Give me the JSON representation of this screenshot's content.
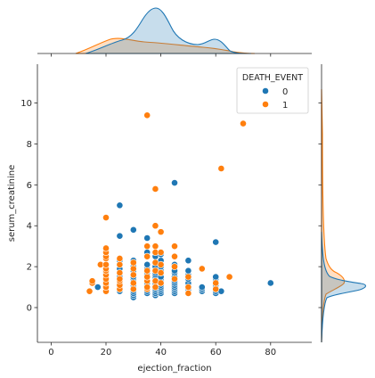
{
  "chart_data": {
    "type": "scatter",
    "title": "",
    "xlabel": "ejection_fraction",
    "ylabel": "serum_creatinine",
    "xlim": [
      -5,
      95
    ],
    "ylim": [
      -1.7,
      11.9
    ],
    "xticks": [
      0,
      20,
      40,
      60,
      80
    ],
    "yticks": [
      0,
      2,
      4,
      6,
      8,
      10
    ],
    "grid": false,
    "legend": {
      "title": "DEATH_EVENT",
      "placement": "top-right",
      "entries": [
        {
          "label": "0",
          "color": "#1f77b4"
        },
        {
          "label": "1",
          "color": "#ff7f0e"
        }
      ]
    },
    "series": [
      {
        "name": "0",
        "color": "#1f77b4",
        "points": [
          [
            17,
            1.0
          ],
          [
            20,
            0.8
          ],
          [
            20,
            1.0
          ],
          [
            20,
            1.1
          ],
          [
            20,
            1.3
          ],
          [
            20,
            1.6
          ],
          [
            20,
            1.7
          ],
          [
            25,
            0.8
          ],
          [
            25,
            0.9
          ],
          [
            25,
            1.0
          ],
          [
            25,
            1.1
          ],
          [
            25,
            1.2
          ],
          [
            25,
            1.3
          ],
          [
            25,
            1.5
          ],
          [
            25,
            1.9
          ],
          [
            25,
            2.3
          ],
          [
            25,
            3.5
          ],
          [
            25,
            5.0
          ],
          [
            30,
            0.5
          ],
          [
            30,
            0.6
          ],
          [
            30,
            0.7
          ],
          [
            30,
            0.8
          ],
          [
            30,
            0.9
          ],
          [
            30,
            1.0
          ],
          [
            30,
            1.1
          ],
          [
            30,
            1.2
          ],
          [
            30,
            1.3
          ],
          [
            30,
            1.4
          ],
          [
            30,
            1.5
          ],
          [
            30,
            1.6
          ],
          [
            30,
            1.7
          ],
          [
            30,
            1.8
          ],
          [
            30,
            2.0
          ],
          [
            30,
            2.3
          ],
          [
            30,
            3.8
          ],
          [
            35,
            0.7
          ],
          [
            35,
            0.8
          ],
          [
            35,
            0.9
          ],
          [
            35,
            1.0
          ],
          [
            35,
            1.1
          ],
          [
            35,
            1.2
          ],
          [
            35,
            1.3
          ],
          [
            35,
            1.4
          ],
          [
            35,
            1.5
          ],
          [
            35,
            1.6
          ],
          [
            35,
            1.7
          ],
          [
            35,
            1.8
          ],
          [
            35,
            1.9
          ],
          [
            35,
            2.1
          ],
          [
            35,
            2.7
          ],
          [
            35,
            3.4
          ],
          [
            38,
            0.6
          ],
          [
            38,
            0.7
          ],
          [
            38,
            0.8
          ],
          [
            38,
            0.9
          ],
          [
            38,
            1.0
          ],
          [
            38,
            1.1
          ],
          [
            38,
            1.2
          ],
          [
            38,
            1.3
          ],
          [
            38,
            1.4
          ],
          [
            38,
            1.5
          ],
          [
            38,
            1.6
          ],
          [
            38,
            1.7
          ],
          [
            38,
            1.8
          ],
          [
            38,
            2.0
          ],
          [
            38,
            2.2
          ],
          [
            38,
            2.5
          ],
          [
            40,
            0.7
          ],
          [
            40,
            0.8
          ],
          [
            40,
            0.9
          ],
          [
            40,
            1.0
          ],
          [
            40,
            1.1
          ],
          [
            40,
            1.2
          ],
          [
            40,
            1.3
          ],
          [
            40,
            1.4
          ],
          [
            40,
            1.5
          ],
          [
            40,
            1.7
          ],
          [
            40,
            1.8
          ],
          [
            40,
            2.0
          ],
          [
            40,
            2.3
          ],
          [
            40,
            2.6
          ],
          [
            45,
            0.7
          ],
          [
            45,
            0.8
          ],
          [
            45,
            0.9
          ],
          [
            45,
            1.0
          ],
          [
            45,
            1.1
          ],
          [
            45,
            1.2
          ],
          [
            45,
            1.3
          ],
          [
            45,
            1.4
          ],
          [
            45,
            1.5
          ],
          [
            45,
            1.7
          ],
          [
            45,
            1.8
          ],
          [
            45,
            2.1
          ],
          [
            45,
            6.1
          ],
          [
            50,
            0.7
          ],
          [
            50,
            0.8
          ],
          [
            50,
            0.9
          ],
          [
            50,
            1.0
          ],
          [
            50,
            1.1
          ],
          [
            50,
            1.2
          ],
          [
            50,
            1.4
          ],
          [
            50,
            1.6
          ],
          [
            50,
            1.8
          ],
          [
            50,
            2.3
          ],
          [
            55,
            0.8
          ],
          [
            55,
            0.9
          ],
          [
            55,
            1.0
          ],
          [
            60,
            0.7
          ],
          [
            60,
            0.8
          ],
          [
            60,
            0.9
          ],
          [
            60,
            1.0
          ],
          [
            60,
            1.1
          ],
          [
            60,
            1.2
          ],
          [
            60,
            1.3
          ],
          [
            60,
            1.4
          ],
          [
            60,
            1.5
          ],
          [
            60,
            3.2
          ],
          [
            62,
            0.8
          ],
          [
            80,
            1.2
          ]
        ]
      },
      {
        "name": "1",
        "color": "#ff7f0e",
        "points": [
          [
            14,
            0.8
          ],
          [
            15,
            1.2
          ],
          [
            15,
            1.3
          ],
          [
            18,
            2.1
          ],
          [
            20,
            0.8
          ],
          [
            20,
            1.0
          ],
          [
            20,
            1.2
          ],
          [
            20,
            1.4
          ],
          [
            20,
            1.6
          ],
          [
            20,
            1.8
          ],
          [
            20,
            1.9
          ],
          [
            20,
            2.1
          ],
          [
            20,
            2.4
          ],
          [
            20,
            2.5
          ],
          [
            20,
            2.7
          ],
          [
            20,
            2.9
          ],
          [
            20,
            4.4
          ],
          [
            25,
            0.9
          ],
          [
            25,
            1.1
          ],
          [
            25,
            1.3
          ],
          [
            25,
            1.4
          ],
          [
            25,
            1.7
          ],
          [
            25,
            2.1
          ],
          [
            25,
            2.4
          ],
          [
            30,
            0.9
          ],
          [
            30,
            1.2
          ],
          [
            30,
            1.6
          ],
          [
            30,
            1.9
          ],
          [
            30,
            2.2
          ],
          [
            35,
            0.9
          ],
          [
            35,
            1.0
          ],
          [
            35,
            1.3
          ],
          [
            35,
            1.5
          ],
          [
            35,
            1.8
          ],
          [
            35,
            2.5
          ],
          [
            35,
            3.0
          ],
          [
            35,
            9.4
          ],
          [
            38,
            1.0
          ],
          [
            38,
            1.3
          ],
          [
            38,
            1.8
          ],
          [
            38,
            2.2
          ],
          [
            38,
            2.7
          ],
          [
            38,
            3.0
          ],
          [
            38,
            4.0
          ],
          [
            38,
            5.8
          ],
          [
            40,
            1.2
          ],
          [
            40,
            1.7
          ],
          [
            40,
            2.1
          ],
          [
            40,
            2.7
          ],
          [
            40,
            3.7
          ],
          [
            45,
            1.4
          ],
          [
            45,
            2.0
          ],
          [
            45,
            2.5
          ],
          [
            45,
            3.0
          ],
          [
            50,
            0.7
          ],
          [
            50,
            1.0
          ],
          [
            50,
            1.5
          ],
          [
            55,
            1.9
          ],
          [
            60,
            0.9
          ],
          [
            60,
            1.2
          ],
          [
            62,
            6.8
          ],
          [
            65,
            1.5
          ],
          [
            70,
            9.0
          ]
        ]
      }
    ]
  }
}
